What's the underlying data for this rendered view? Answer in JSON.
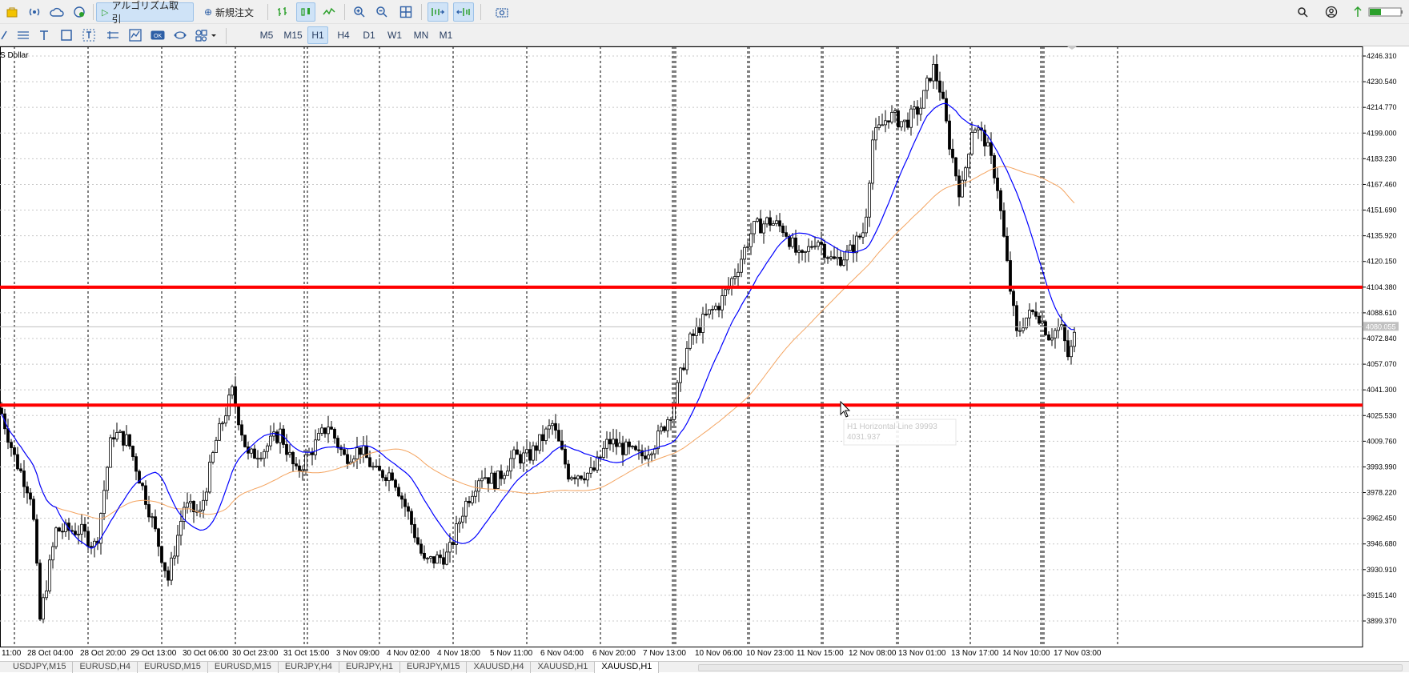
{
  "toolbar": {
    "algo_label": "アルゴリズム取引",
    "neworder_label": "新規注文"
  },
  "timeframes": [
    "M5",
    "M15",
    "H1",
    "H4",
    "D1",
    "W1",
    "MN",
    "M1"
  ],
  "active_timeframe": "H1",
  "chart": {
    "symbol_label": "S Dollar",
    "price_labels": [
      "4246.310",
      "4230.540",
      "4214.770",
      "4199.000",
      "4183.230",
      "4167.460",
      "4151.690",
      "4135.920",
      "4120.150",
      "4104.380",
      "4088.610",
      "4072.840",
      "4057.070",
      "4041.300",
      "4025.530",
      "4009.760",
      "3993.990",
      "3978.220",
      "3962.450",
      "3946.680",
      "3930.910",
      "3915.140",
      "3899.370"
    ],
    "current_price_label": "4080.055",
    "time_labels": [
      "11:00",
      "28 Oct 04:00",
      "28 Oct 20:00",
      "29 Oct 13:00",
      "30 Oct 06:00",
      "30 Oct 23:00",
      "31 Oct 15:00",
      "3 Nov 09:00",
      "4 Nov 02:00",
      "4 Nov 18:00",
      "5 Nov 11:00",
      "6 Nov 04:00",
      "6 Nov 20:00",
      "7 Nov 13:00",
      "10 Nov 06:00",
      "10 Nov 23:00",
      "11 Nov 15:00",
      "12 Nov 08:00",
      "13 Nov 01:00",
      "13 Nov 17:00",
      "14 Nov 10:00",
      "17 Nov 03:00"
    ],
    "tooltip_line1": "H1 Horizontal Line 39993",
    "tooltip_line2": "4031.937",
    "horizontal_lines": [
      4104.38,
      4031.937
    ],
    "colors": {
      "horizontal_line": "#ff0000",
      "ma_fast": "#0000ff",
      "ma_slow": "#f4a460",
      "candle": "#000000"
    }
  },
  "tabs": [
    "USDJPY,M15",
    "EURUSD,H4",
    "EURUSD,M15",
    "EURUSD,M15",
    "EURJPY,H4",
    "EURJPY,H1",
    "EURJPY,M15",
    "XAUUSD,H4",
    "XAUUSD,H1",
    "XAUUSD,H1"
  ],
  "active_tab_index": 9
}
